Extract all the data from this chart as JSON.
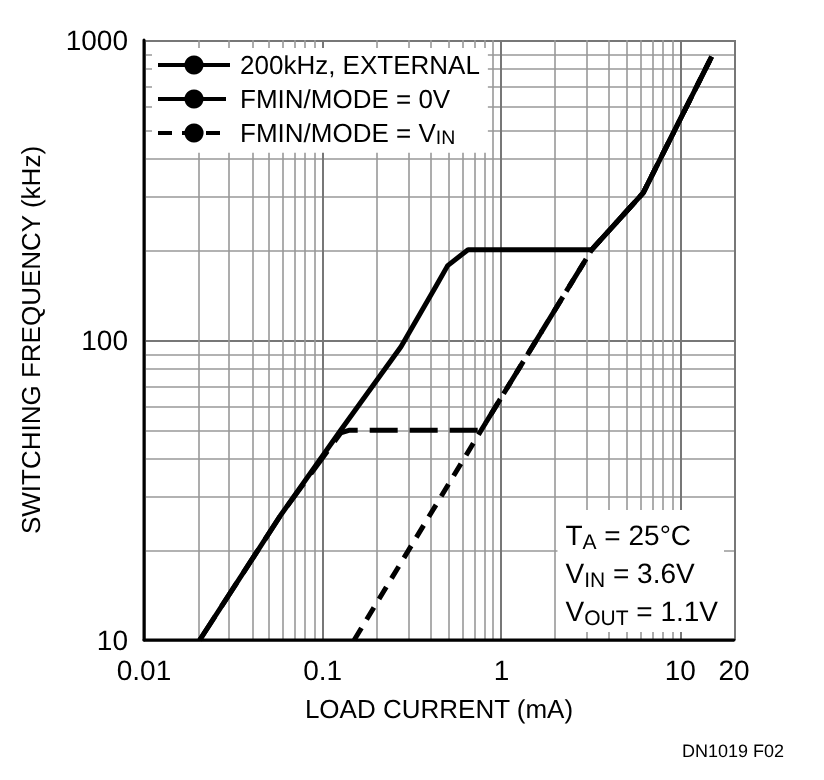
{
  "chart_data": {
    "type": "line",
    "xlabel": "LOAD CURRENT (mA)",
    "ylabel": "SWITCHING FREQUENCY (kHz)",
    "log": "xy",
    "xlim": [
      0.01,
      20
    ],
    "xticks": [
      0.01,
      0.1,
      1,
      10,
      20
    ],
    "ylim": [
      10,
      1000
    ],
    "yticks": [
      10,
      100,
      1000
    ],
    "grid": true,
    "legend": "top left",
    "marker": "none",
    "series": [
      {
        "name": "200kHz, EXTERNAL",
        "color": "#000000",
        "line_style": "solid",
        "x": [
          0.0205,
          0.058,
          0.126,
          0.274,
          0.43,
          0.5,
          0.65,
          3.2,
          6.2,
          15
        ],
        "values": [
          10,
          26,
          50,
          95,
          151,
          177,
          200,
          200,
          309,
          880
        ]
      },
      {
        "name": "FMIN/MODE = 0V",
        "color": "#000000",
        "line_style": "dashed",
        "x": [
          0.0205,
          0.058,
          0.126,
          0.14,
          0.77,
          3.2,
          6.2,
          15
        ],
        "values": [
          10,
          26,
          49,
          50,
          50,
          200,
          309,
          880
        ]
      },
      {
        "name": "FMIN/MODE = V$_{IN}$",
        "color": "#000000",
        "line_style": "dotted",
        "x": [
          0.15,
          0.77,
          3.2,
          6.2,
          15
        ],
        "values": [
          10,
          50,
          200,
          309,
          880
        ]
      }
    ],
    "annotations": [
      "T$_{A}$ = 25°C",
      "V$_{IN}$ = 3.6V",
      "V$_{OUT}$ = 1.1V",
      "DN1019 F02"
    ]
  }
}
